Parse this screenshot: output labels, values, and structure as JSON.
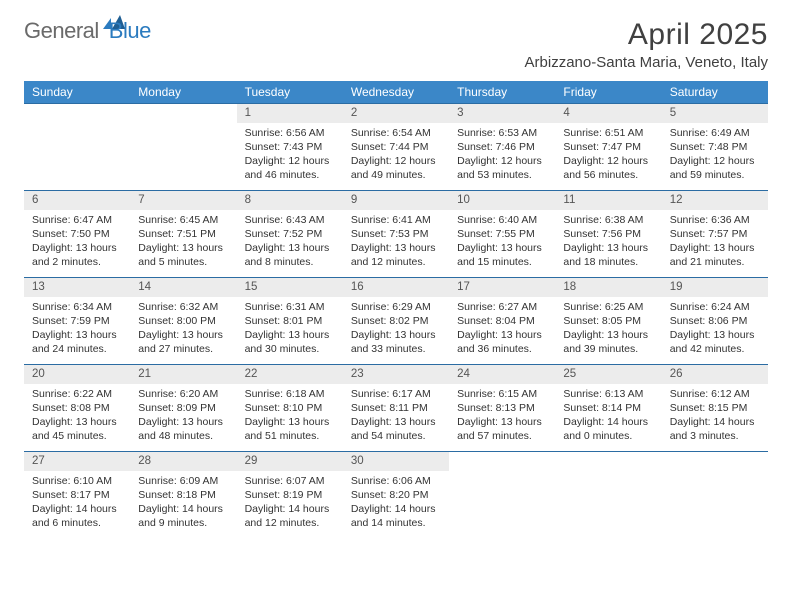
{
  "brand": {
    "part1": "General",
    "part2": "Blue"
  },
  "title": "April 2025",
  "location": "Arbizzano-Santa Maria, Veneto, Italy",
  "colors": {
    "header_bg": "#3b87c8",
    "header_text": "#ffffff",
    "daynum_bg": "#ececec",
    "rule": "#2b6ca3",
    "body_text": "#333333",
    "brand_grey": "#6a6a6a",
    "brand_blue": "#2b7bbf"
  },
  "day_headers": [
    "Sunday",
    "Monday",
    "Tuesday",
    "Wednesday",
    "Thursday",
    "Friday",
    "Saturday"
  ],
  "weeks": [
    {
      "nums": [
        "",
        "",
        "1",
        "2",
        "3",
        "4",
        "5"
      ],
      "cells": [
        null,
        null,
        {
          "sunrise": "Sunrise: 6:56 AM",
          "sunset": "Sunset: 7:43 PM",
          "daylight": "Daylight: 12 hours and 46 minutes."
        },
        {
          "sunrise": "Sunrise: 6:54 AM",
          "sunset": "Sunset: 7:44 PM",
          "daylight": "Daylight: 12 hours and 49 minutes."
        },
        {
          "sunrise": "Sunrise: 6:53 AM",
          "sunset": "Sunset: 7:46 PM",
          "daylight": "Daylight: 12 hours and 53 minutes."
        },
        {
          "sunrise": "Sunrise: 6:51 AM",
          "sunset": "Sunset: 7:47 PM",
          "daylight": "Daylight: 12 hours and 56 minutes."
        },
        {
          "sunrise": "Sunrise: 6:49 AM",
          "sunset": "Sunset: 7:48 PM",
          "daylight": "Daylight: 12 hours and 59 minutes."
        }
      ]
    },
    {
      "nums": [
        "6",
        "7",
        "8",
        "9",
        "10",
        "11",
        "12"
      ],
      "cells": [
        {
          "sunrise": "Sunrise: 6:47 AM",
          "sunset": "Sunset: 7:50 PM",
          "daylight": "Daylight: 13 hours and 2 minutes."
        },
        {
          "sunrise": "Sunrise: 6:45 AM",
          "sunset": "Sunset: 7:51 PM",
          "daylight": "Daylight: 13 hours and 5 minutes."
        },
        {
          "sunrise": "Sunrise: 6:43 AM",
          "sunset": "Sunset: 7:52 PM",
          "daylight": "Daylight: 13 hours and 8 minutes."
        },
        {
          "sunrise": "Sunrise: 6:41 AM",
          "sunset": "Sunset: 7:53 PM",
          "daylight": "Daylight: 13 hours and 12 minutes."
        },
        {
          "sunrise": "Sunrise: 6:40 AM",
          "sunset": "Sunset: 7:55 PM",
          "daylight": "Daylight: 13 hours and 15 minutes."
        },
        {
          "sunrise": "Sunrise: 6:38 AM",
          "sunset": "Sunset: 7:56 PM",
          "daylight": "Daylight: 13 hours and 18 minutes."
        },
        {
          "sunrise": "Sunrise: 6:36 AM",
          "sunset": "Sunset: 7:57 PM",
          "daylight": "Daylight: 13 hours and 21 minutes."
        }
      ]
    },
    {
      "nums": [
        "13",
        "14",
        "15",
        "16",
        "17",
        "18",
        "19"
      ],
      "cells": [
        {
          "sunrise": "Sunrise: 6:34 AM",
          "sunset": "Sunset: 7:59 PM",
          "daylight": "Daylight: 13 hours and 24 minutes."
        },
        {
          "sunrise": "Sunrise: 6:32 AM",
          "sunset": "Sunset: 8:00 PM",
          "daylight": "Daylight: 13 hours and 27 minutes."
        },
        {
          "sunrise": "Sunrise: 6:31 AM",
          "sunset": "Sunset: 8:01 PM",
          "daylight": "Daylight: 13 hours and 30 minutes."
        },
        {
          "sunrise": "Sunrise: 6:29 AM",
          "sunset": "Sunset: 8:02 PM",
          "daylight": "Daylight: 13 hours and 33 minutes."
        },
        {
          "sunrise": "Sunrise: 6:27 AM",
          "sunset": "Sunset: 8:04 PM",
          "daylight": "Daylight: 13 hours and 36 minutes."
        },
        {
          "sunrise": "Sunrise: 6:25 AM",
          "sunset": "Sunset: 8:05 PM",
          "daylight": "Daylight: 13 hours and 39 minutes."
        },
        {
          "sunrise": "Sunrise: 6:24 AM",
          "sunset": "Sunset: 8:06 PM",
          "daylight": "Daylight: 13 hours and 42 minutes."
        }
      ]
    },
    {
      "nums": [
        "20",
        "21",
        "22",
        "23",
        "24",
        "25",
        "26"
      ],
      "cells": [
        {
          "sunrise": "Sunrise: 6:22 AM",
          "sunset": "Sunset: 8:08 PM",
          "daylight": "Daylight: 13 hours and 45 minutes."
        },
        {
          "sunrise": "Sunrise: 6:20 AM",
          "sunset": "Sunset: 8:09 PM",
          "daylight": "Daylight: 13 hours and 48 minutes."
        },
        {
          "sunrise": "Sunrise: 6:18 AM",
          "sunset": "Sunset: 8:10 PM",
          "daylight": "Daylight: 13 hours and 51 minutes."
        },
        {
          "sunrise": "Sunrise: 6:17 AM",
          "sunset": "Sunset: 8:11 PM",
          "daylight": "Daylight: 13 hours and 54 minutes."
        },
        {
          "sunrise": "Sunrise: 6:15 AM",
          "sunset": "Sunset: 8:13 PM",
          "daylight": "Daylight: 13 hours and 57 minutes."
        },
        {
          "sunrise": "Sunrise: 6:13 AM",
          "sunset": "Sunset: 8:14 PM",
          "daylight": "Daylight: 14 hours and 0 minutes."
        },
        {
          "sunrise": "Sunrise: 6:12 AM",
          "sunset": "Sunset: 8:15 PM",
          "daylight": "Daylight: 14 hours and 3 minutes."
        }
      ]
    },
    {
      "nums": [
        "27",
        "28",
        "29",
        "30",
        "",
        "",
        ""
      ],
      "cells": [
        {
          "sunrise": "Sunrise: 6:10 AM",
          "sunset": "Sunset: 8:17 PM",
          "daylight": "Daylight: 14 hours and 6 minutes."
        },
        {
          "sunrise": "Sunrise: 6:09 AM",
          "sunset": "Sunset: 8:18 PM",
          "daylight": "Daylight: 14 hours and 9 minutes."
        },
        {
          "sunrise": "Sunrise: 6:07 AM",
          "sunset": "Sunset: 8:19 PM",
          "daylight": "Daylight: 14 hours and 12 minutes."
        },
        {
          "sunrise": "Sunrise: 6:06 AM",
          "sunset": "Sunset: 8:20 PM",
          "daylight": "Daylight: 14 hours and 14 minutes."
        },
        null,
        null,
        null
      ]
    }
  ]
}
